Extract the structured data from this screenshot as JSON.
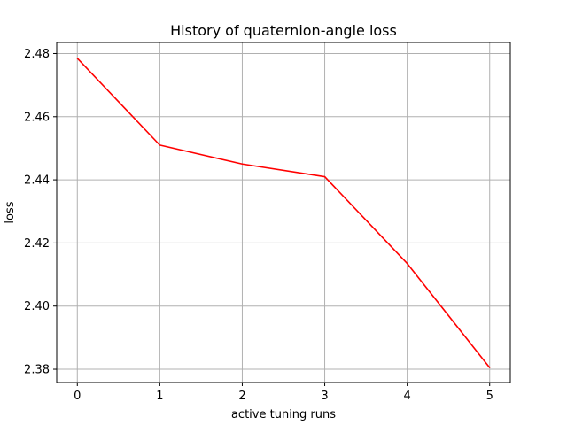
{
  "chart_data": {
    "type": "line",
    "title": "History of quaternion-angle loss",
    "xlabel": "active tuning runs",
    "ylabel": "loss",
    "x": [
      0,
      1,
      2,
      3,
      4,
      5
    ],
    "series": [
      {
        "values": [
          2.4785,
          2.451,
          2.445,
          2.441,
          2.4135,
          2.3805
        ],
        "color": "#ff0000"
      }
    ],
    "xlim": [
      -0.25,
      5.25
    ],
    "ylim": [
      2.3758,
      2.4835
    ],
    "xticks": [
      0,
      1,
      2,
      3,
      4,
      5
    ],
    "yticks": [
      2.38,
      2.4,
      2.42,
      2.44,
      2.46,
      2.48
    ],
    "ytick_labels": [
      "2.38",
      "2.40",
      "2.42",
      "2.44",
      "2.46",
      "2.48"
    ],
    "grid": true,
    "grid_color": "#b0b0b0"
  }
}
